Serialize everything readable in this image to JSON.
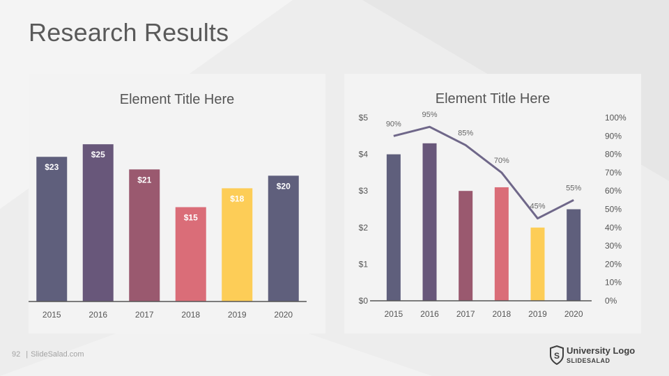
{
  "slide": {
    "title": "Research Results",
    "page_number": "92",
    "footer_text": "SlideSalad.com",
    "logo": {
      "title": "University Logo",
      "subtitle": "SLIDESALAD",
      "letter": "S"
    }
  },
  "colors": {
    "bars": [
      "#5f5f7c",
      "#68577a",
      "#9a596f",
      "#da6d78",
      "#fdcd57",
      "#5f5f7c"
    ],
    "line": "#6f6789",
    "axis": "#555555",
    "label_dark": "#666666",
    "label_light": "#ffffff"
  },
  "chart_data": [
    {
      "type": "bar",
      "title": "Element Title Here",
      "categories": [
        "2015",
        "2016",
        "2017",
        "2018",
        "2019",
        "2020"
      ],
      "values": [
        23,
        25,
        21,
        15,
        18,
        20
      ],
      "data_labels": [
        "$23",
        "$25",
        "$21",
        "$15",
        "$18",
        "$20"
      ],
      "ylim": [
        0,
        30
      ],
      "grid": false
    },
    {
      "type": "bar",
      "title": "Element Title Here",
      "categories": [
        "2015",
        "2016",
        "2017",
        "2018",
        "2019",
        "2020"
      ],
      "series": [
        {
          "type": "bar",
          "axis": "left",
          "values": [
            4.0,
            4.3,
            3.0,
            3.1,
            2.0,
            2.5
          ]
        },
        {
          "type": "line",
          "axis": "right",
          "values": [
            90,
            95,
            85,
            70,
            45,
            55
          ],
          "data_labels": [
            "90%",
            "95%",
            "85%",
            "70%",
            "45%",
            "55%"
          ]
        }
      ],
      "y_left": {
        "ylim": [
          0,
          5
        ],
        "ticks": [
          "$0",
          "$1",
          "$2",
          "$3",
          "$4",
          "$5"
        ]
      },
      "y_right": {
        "ylim": [
          0,
          100
        ],
        "ticks": [
          "0%",
          "10%",
          "20%",
          "30%",
          "40%",
          "50%",
          "60%",
          "70%",
          "80%",
          "90%",
          "100%"
        ]
      },
      "grid": false
    }
  ]
}
